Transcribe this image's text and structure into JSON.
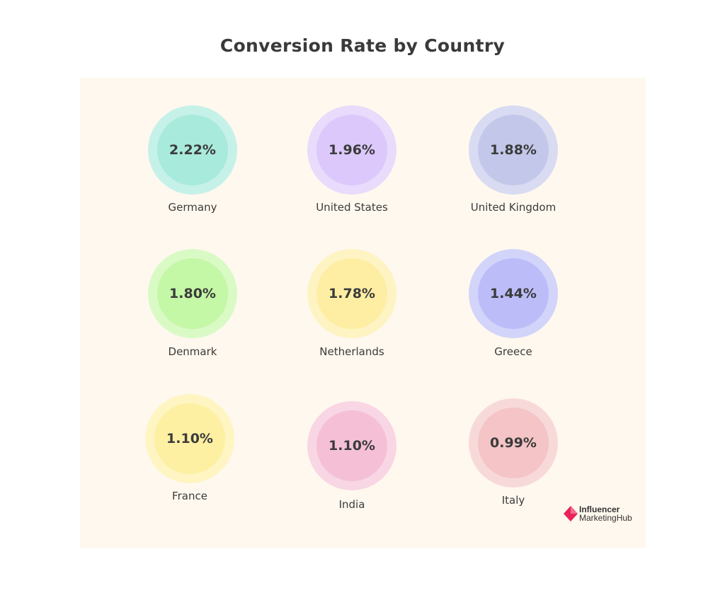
{
  "chart_data": {
    "type": "bubble",
    "title": "Conversion Rate by Country",
    "unit": "%",
    "items": [
      {
        "country": "Germany",
        "value": 2.22,
        "label": "2.22%",
        "color": "#a8eadc"
      },
      {
        "country": "United States",
        "value": 1.96,
        "label": "1.96%",
        "color": "#dcc8fb"
      },
      {
        "country": "United Kingdom",
        "value": 1.88,
        "label": "1.88%",
        "color": "#c3c8ea"
      },
      {
        "country": "Denmark",
        "value": 1.8,
        "label": "1.80%",
        "color": "#c4f7a6"
      },
      {
        "country": "Netherlands",
        "value": 1.78,
        "label": "1.78%",
        "color": "#fdeea3"
      },
      {
        "country": "Greece",
        "value": 1.44,
        "label": "1.44%",
        "color": "#bcbdf8"
      },
      {
        "country": "France",
        "value": 1.1,
        "label": "1.10%",
        "color": "#fdf0a2"
      },
      {
        "country": "India",
        "value": 1.1,
        "label": "1.10%",
        "color": "#f5c0d6"
      },
      {
        "country": "Italy",
        "value": 0.99,
        "label": "0.99%",
        "color": "#f4c4c6"
      }
    ]
  },
  "logo": {
    "line1": "Influencer",
    "line2": "MarketingHub",
    "color": "#e8245a"
  }
}
